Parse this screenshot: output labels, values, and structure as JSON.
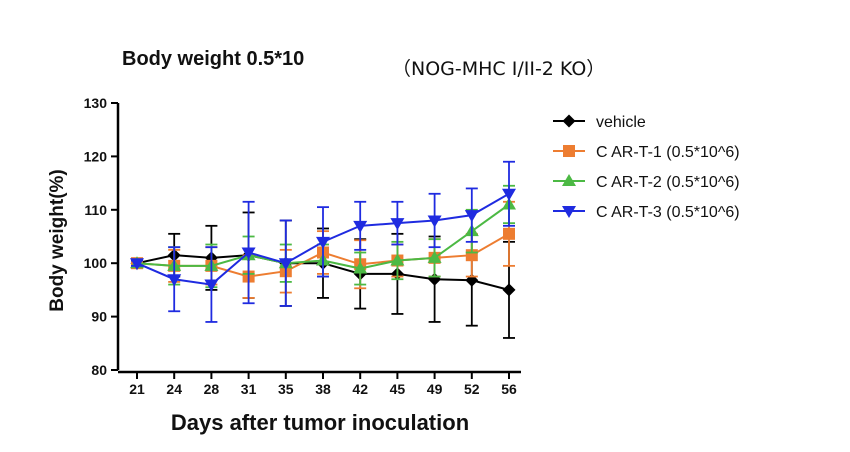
{
  "chart_data": {
    "type": "line",
    "title": "Body weight  0.5*10",
    "subtitle": "（NOG-MHC I/II-2 KO）",
    "xlabel": "Days after tumor inoculation",
    "ylabel": "Body weight(%)",
    "x": [
      21,
      24,
      28,
      31,
      35,
      38,
      42,
      45,
      49,
      52,
      56
    ],
    "ylim": [
      80,
      130
    ],
    "yticks": [
      80,
      90,
      100,
      110,
      120,
      130
    ],
    "grid": false,
    "legend_position": "right",
    "series": [
      {
        "name": "vehicle",
        "color": "#000000",
        "marker": "diamond",
        "values": [
          100,
          101.5,
          101,
          101.5,
          100,
          100,
          98,
          98,
          97,
          96.8,
          95
        ],
        "errors": [
          0.5,
          4,
          6,
          8,
          8,
          6.5,
          6.5,
          7.5,
          8,
          8.5,
          9
        ]
      },
      {
        "name": "C AR-T-1 (0.5*10^6)",
        "color": "#ED7D31",
        "marker": "square",
        "values": [
          100,
          99.5,
          99.5,
          97.5,
          98.5,
          102,
          99.8,
          100.5,
          101,
          101.5,
          105.5
        ],
        "errors": [
          0.5,
          3,
          3.5,
          4,
          4,
          4,
          4.5,
          3,
          3.5,
          4,
          6
        ]
      },
      {
        "name": "C AR-T-2  (0.5*10^6)",
        "color": "#4CB944",
        "marker": "triangle-up",
        "values": [
          100,
          99.5,
          99.5,
          101.5,
          100,
          100.5,
          99,
          100.5,
          101,
          106,
          111
        ],
        "errors": [
          0.5,
          3.5,
          4,
          3.5,
          3.5,
          3,
          3,
          3.5,
          3.5,
          4,
          3.5
        ]
      },
      {
        "name": "C AR-T-3  (0.5*10^6)",
        "color": "#1F2BE0",
        "marker": "triangle-down",
        "values": [
          100,
          97,
          96,
          102,
          100,
          104,
          107,
          107.5,
          108,
          109,
          113
        ],
        "errors": [
          0.5,
          6,
          7,
          9.5,
          8,
          6.5,
          4.5,
          4,
          5,
          5,
          6
        ]
      }
    ]
  }
}
